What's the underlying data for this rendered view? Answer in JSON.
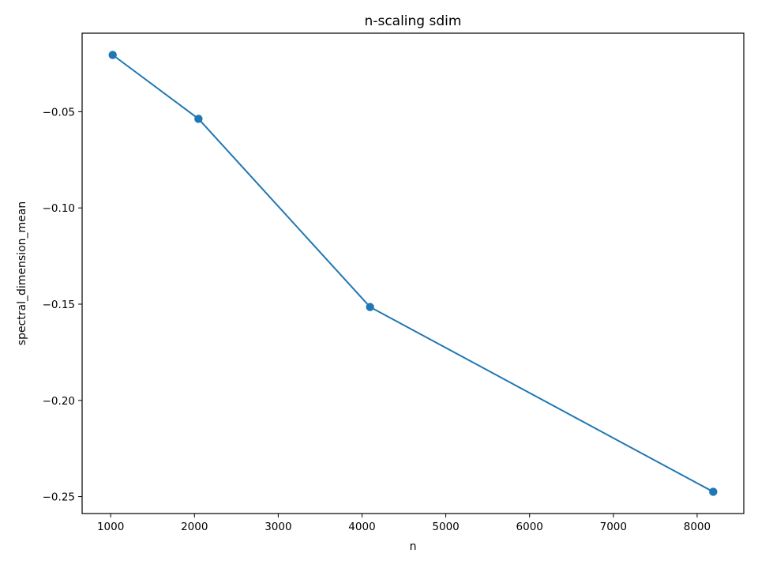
{
  "chart_data": {
    "type": "line",
    "title": "n-scaling sdim",
    "xlabel": "n",
    "ylabel": "spectral_dimension_mean",
    "x": [
      1024,
      2048,
      4096,
      8192
    ],
    "series": [
      {
        "values": [
          -0.0205,
          -0.0537,
          -0.1515,
          -0.2475
        ]
      }
    ],
    "xlim": [
      659.2,
      8556.8
    ],
    "ylim": [
      -0.2588,
      -0.0092
    ],
    "xticks": [
      1000,
      2000,
      3000,
      4000,
      5000,
      6000,
      7000,
      8000
    ],
    "xtick_labels": [
      "1000",
      "2000",
      "3000",
      "4000",
      "5000",
      "6000",
      "7000",
      "8000"
    ],
    "yticks": [
      -0.05,
      -0.1,
      -0.15,
      -0.2,
      -0.25
    ],
    "ytick_labels": [
      "−0.05",
      "−0.10",
      "−0.15",
      "−0.20",
      "−0.25"
    ],
    "grid": false,
    "marker": "circle",
    "color": "#1f77b4"
  }
}
